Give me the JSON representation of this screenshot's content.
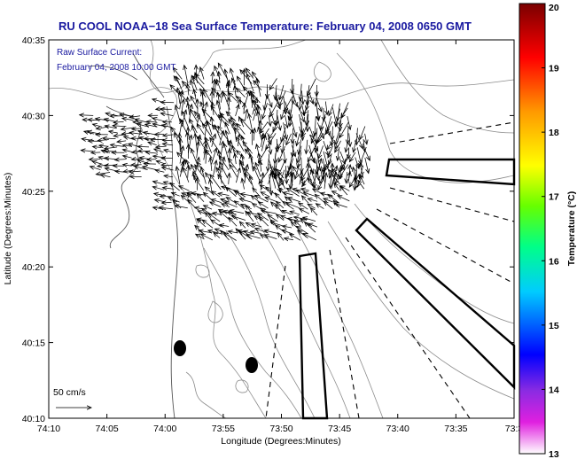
{
  "title": "RU COOL  NOAA−18  Sea Surface Temperature:  February 04, 2008 0650 GMT",
  "current_note": {
    "line1": "Raw Surface Current:",
    "line2": "February 04, 2008 10:00 GMT"
  },
  "axes": {
    "xlabel": "Longitude (Degrees:Minutes)",
    "ylabel": "Latitude (Degrees:Minutes)",
    "xticks": [
      "74:10",
      "74:05",
      "74:00",
      "73:55",
      "73:50",
      "73:45",
      "73:40",
      "73:35",
      "73:3"
    ],
    "yticks": [
      "40:10",
      "40:15",
      "40:20",
      "40:25",
      "40:30",
      "40:35"
    ]
  },
  "scale_label": "50 cm/s",
  "colorbar": {
    "label": "Temperature (°C)",
    "min": 13,
    "max": 20,
    "ticks": [
      "13",
      "14",
      "15",
      "16",
      "17",
      "18",
      "19",
      "20"
    ]
  },
  "colors": {
    "title": "#1a1aa0",
    "contour": "#8c8c8c",
    "coast": "#555555",
    "arrow": "#000000"
  }
}
